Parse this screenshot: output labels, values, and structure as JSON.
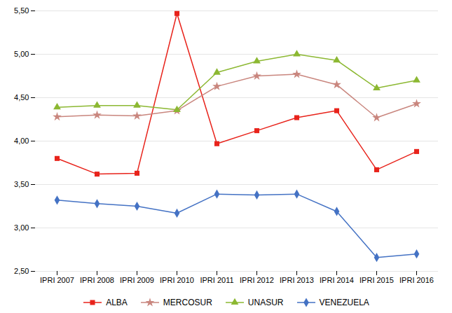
{
  "chart_data": {
    "type": "line",
    "categories": [
      "IPRI 2007",
      "IPRI 2008",
      "IPRI 2009",
      "IPRI 2010",
      "IPRI 2011",
      "IPRI 2012",
      "IPRI 2013",
      "IPRI 2014",
      "IPRI 2015",
      "IPRI 2016"
    ],
    "series": [
      {
        "name": "ALBA",
        "color": "#e8231b",
        "marker": "square",
        "values": [
          3.8,
          3.62,
          3.63,
          5.47,
          3.97,
          4.12,
          4.27,
          4.35,
          3.67,
          3.88
        ]
      },
      {
        "name": "MERCOSUR",
        "color": "#c9867e",
        "marker": "star",
        "values": [
          4.28,
          4.3,
          4.29,
          4.35,
          4.63,
          4.75,
          4.77,
          4.65,
          4.27,
          4.43
        ]
      },
      {
        "name": "UNASUR",
        "color": "#8cb832",
        "marker": "triangle",
        "values": [
          4.39,
          4.41,
          4.41,
          4.36,
          4.79,
          4.92,
          5.0,
          4.93,
          4.61,
          4.7
        ]
      },
      {
        "name": "VENEZUELA",
        "color": "#4472c4",
        "marker": "diamond",
        "values": [
          3.32,
          3.28,
          3.25,
          3.17,
          3.39,
          3.38,
          3.39,
          3.19,
          2.66,
          2.7
        ]
      }
    ],
    "ylim": [
      2.5,
      5.5
    ],
    "yticks": [
      {
        "value": 2.5,
        "label": "2,50"
      },
      {
        "value": 3.0,
        "label": "3,00"
      },
      {
        "value": 3.5,
        "label": "3,50"
      },
      {
        "value": 4.0,
        "label": "4,00"
      },
      {
        "value": 4.5,
        "label": "4,50"
      },
      {
        "value": 5.0,
        "label": "5,00"
      },
      {
        "value": 5.5,
        "label": "5,50"
      }
    ],
    "grid": true,
    "legend": "bottom"
  }
}
